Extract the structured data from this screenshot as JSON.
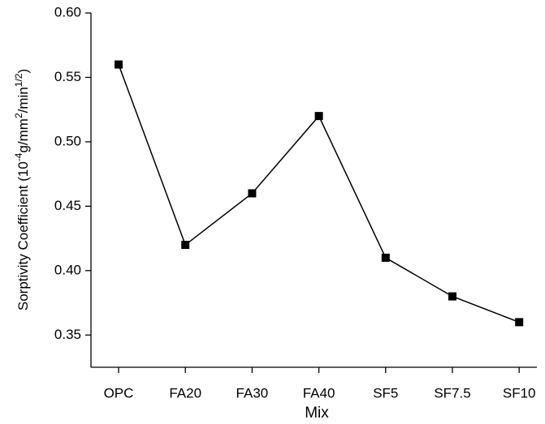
{
  "chart_data": {
    "type": "line",
    "xlabel": "Mix",
    "ylabel": [
      "Sorptivity Coefficient (10",
      "-4",
      "g/mm",
      "2",
      "/min",
      "1/2",
      ")"
    ],
    "categories": [
      "OPC",
      "FA20",
      "FA30",
      "FA40",
      "SF5",
      "SF7.5",
      "SF10"
    ],
    "values": [
      0.56,
      0.42,
      0.46,
      0.52,
      0.41,
      0.38,
      0.36
    ],
    "color": "#000000",
    "ylim": [
      0.325,
      0.6
    ],
    "yticks": [
      {
        "value": 0.6,
        "label": "0.60"
      },
      0.55,
      {
        "value": 0.5,
        "label": "0.50"
      },
      0.45,
      {
        "value": 0.4,
        "label": "0.40"
      },
      0.35
    ]
  }
}
